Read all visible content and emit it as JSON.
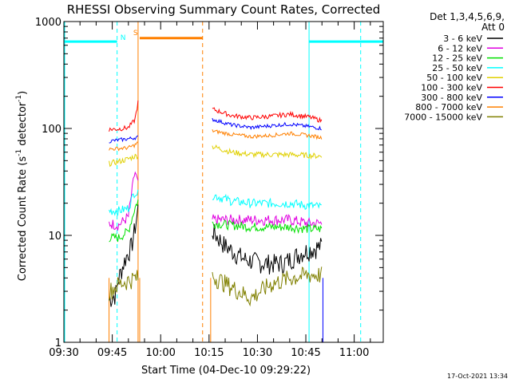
{
  "chart_data": {
    "type": "line",
    "title": "RHESSI Observing Summary Count Rates, Corrected",
    "xlabel": "Start Time (04-Dec-10 09:29:22)",
    "ylabel_main": "Corrected Count Rate (s",
    "ylabel_sup1": "-1",
    "ylabel_mid": " detector",
    "ylabel_sup2": "-1",
    "ylabel_end": ")",
    "yscale": "log",
    "ylim": [
      1,
      1000
    ],
    "xlim_minutes": [
      0,
      99
    ],
    "x_ticks": [
      {
        "minute": 0,
        "label": "09:30"
      },
      {
        "minute": 15,
        "label": "09:45"
      },
      {
        "minute": 30,
        "label": "10:00"
      },
      {
        "minute": 45,
        "label": "10:15"
      },
      {
        "minute": 60,
        "label": "10:30"
      },
      {
        "minute": 75,
        "label": "10:45"
      },
      {
        "minute": 90,
        "label": "11:00"
      }
    ],
    "y_ticks": [
      {
        "value": 1,
        "label": "1"
      },
      {
        "value": 10,
        "label": "10"
      },
      {
        "value": 100,
        "label": "100"
      },
      {
        "value": 1000,
        "label": "1000"
      }
    ],
    "legend": {
      "header1": "Det 1,3,4,5,6,9,",
      "header2": "Att 0",
      "placement": "right"
    },
    "series": [
      {
        "name": "3 - 6 keV",
        "color": "#000000",
        "seg1": [
          [
            14,
            2.5
          ],
          [
            16,
            2.8
          ],
          [
            17,
            4
          ],
          [
            19,
            6
          ],
          [
            21,
            8
          ],
          [
            22.5,
            14
          ],
          [
            23.2,
            20
          ]
        ],
        "seg2": [
          [
            46,
            11
          ],
          [
            50,
            8
          ],
          [
            56,
            6
          ],
          [
            62,
            5.5
          ],
          [
            68,
            5.5
          ],
          [
            74,
            7
          ],
          [
            80,
            8
          ]
        ]
      },
      {
        "name": "6 - 12 keV",
        "color": "#e000e0",
        "seg1": [
          [
            14,
            13
          ],
          [
            17,
            12.5
          ],
          [
            20,
            15
          ],
          [
            22,
            40
          ],
          [
            23.2,
            28
          ]
        ],
        "seg2": [
          [
            46,
            14
          ],
          [
            52,
            14
          ],
          [
            58,
            14
          ],
          [
            64,
            14
          ],
          [
            70,
            14
          ],
          [
            76,
            13
          ],
          [
            80,
            13
          ]
        ]
      },
      {
        "name": "12 - 25 keV",
        "color": "#00e000",
        "seg1": [
          [
            14,
            9.5
          ],
          [
            17,
            9.5
          ],
          [
            20,
            11
          ],
          [
            22,
            18
          ],
          [
            23.2,
            22
          ]
        ],
        "seg2": [
          [
            46,
            13
          ],
          [
            52,
            12.5
          ],
          [
            58,
            12
          ],
          [
            64,
            12
          ],
          [
            70,
            12
          ],
          [
            76,
            11.5
          ],
          [
            80,
            11.5
          ]
        ]
      },
      {
        "name": "25 - 50 keV",
        "color": "#00ffff",
        "seg1": [
          [
            14,
            17
          ],
          [
            17,
            17
          ],
          [
            20,
            18
          ],
          [
            22,
            26
          ],
          [
            23.2,
            24
          ]
        ],
        "seg2": [
          [
            46,
            24
          ],
          [
            52,
            21
          ],
          [
            58,
            20
          ],
          [
            64,
            20
          ],
          [
            70,
            20
          ],
          [
            76,
            19
          ],
          [
            80,
            18.5
          ]
        ]
      },
      {
        "name": "50 - 100 keV",
        "color": "#e0d000",
        "seg1": [
          [
            14,
            47
          ],
          [
            17,
            49
          ],
          [
            20,
            52
          ],
          [
            22,
            55
          ],
          [
            23.2,
            56
          ]
        ],
        "seg2": [
          [
            46,
            68
          ],
          [
            52,
            60
          ],
          [
            58,
            57
          ],
          [
            64,
            57
          ],
          [
            70,
            57
          ],
          [
            76,
            56
          ],
          [
            80,
            55
          ]
        ]
      },
      {
        "name": "100 - 300 keV",
        "color": "#ff0000",
        "seg1": [
          [
            14,
            98
          ],
          [
            17,
            99
          ],
          [
            20,
            102
          ],
          [
            22,
            120
          ],
          [
            23.2,
            190
          ]
        ],
        "seg2": [
          [
            46,
            152
          ],
          [
            52,
            132
          ],
          [
            58,
            126
          ],
          [
            64,
            130
          ],
          [
            70,
            136
          ],
          [
            76,
            128
          ],
          [
            80,
            118
          ]
        ]
      },
      {
        "name": "300 - 800 keV",
        "color": "#0000ff",
        "seg1": [
          [
            14,
            76
          ],
          [
            17,
            78
          ],
          [
            20,
            80
          ],
          [
            22,
            82
          ],
          [
            23.2,
            83
          ]
        ],
        "seg2": [
          [
            46,
            122
          ],
          [
            52,
            108
          ],
          [
            58,
            102
          ],
          [
            64,
            106
          ],
          [
            70,
            110
          ],
          [
            76,
            104
          ],
          [
            80,
            100
          ]
        ]
      },
      {
        "name": "800 - 7000 keV",
        "color": "#ff8000",
        "seg1": [
          [
            14,
            64
          ],
          [
            17,
            65
          ],
          [
            20,
            66
          ],
          [
            22,
            70
          ],
          [
            23.2,
            75
          ]
        ],
        "seg2": [
          [
            46,
            95
          ],
          [
            52,
            88
          ],
          [
            58,
            84
          ],
          [
            64,
            86
          ],
          [
            70,
            90
          ],
          [
            76,
            86
          ],
          [
            80,
            82
          ]
        ]
      },
      {
        "name": "7000 - 15000 keV",
        "color": "#808000",
        "seg1": [
          [
            14,
            3
          ],
          [
            17,
            3.5
          ],
          [
            20,
            3.8
          ],
          [
            22,
            4
          ],
          [
            23.2,
            4
          ]
        ],
        "seg2": [
          [
            46,
            4.2
          ],
          [
            52,
            3.3
          ],
          [
            58,
            2.6
          ],
          [
            64,
            3.5
          ],
          [
            70,
            4
          ],
          [
            76,
            4.3
          ],
          [
            80,
            4.3
          ]
        ]
      }
    ],
    "flags": {
      "saa_bar_label": "S",
      "night_label": "N",
      "colors": {
        "saa": "#ff8000",
        "night": "#00ffff"
      }
    },
    "timestamp": "17-Oct-2021 13:34"
  }
}
